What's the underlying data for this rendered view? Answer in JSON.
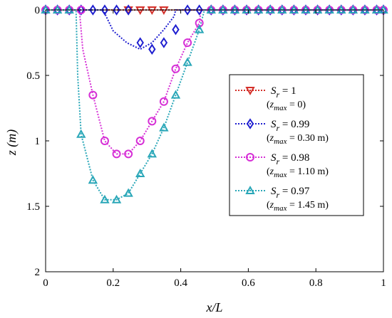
{
  "chart_data": {
    "type": "line",
    "xlabel": "x/L",
    "ylabel": "z (m)",
    "xlim": [
      0,
      1
    ],
    "ylim": [
      0,
      2
    ],
    "y_inverted": true,
    "grid": false,
    "legend_position": "right",
    "x_ticks": [
      "0",
      "0.2",
      "0.4",
      "0.6",
      "0.8",
      "1"
    ],
    "y_ticks": [
      "0",
      "0.5",
      "1",
      "1.5",
      "2"
    ],
    "series": [
      {
        "name": "Sr = 1 (zmax = 0)",
        "label_main": "S",
        "label_sub": "r",
        "label_value": " = 1",
        "note_open": "(",
        "note_var": "z",
        "note_sub": "max",
        "note_value": " = 0)",
        "color": "#d4302a",
        "marker": "triangle-down",
        "x": [
          0.0,
          0.035,
          0.07,
          0.105,
          0.14,
          0.175,
          0.21,
          0.245,
          0.28,
          0.315,
          0.35,
          0.385,
          0.42,
          0.455,
          0.49,
          0.525,
          0.56,
          0.595,
          0.63,
          0.665,
          0.7,
          0.735,
          0.77,
          0.805,
          0.84,
          0.875,
          0.91,
          0.945,
          0.98
        ],
        "y": [
          0,
          0,
          0,
          0,
          0,
          0,
          0,
          0,
          0,
          0,
          0,
          0,
          0,
          0,
          0,
          0,
          0,
          0,
          0,
          0,
          0,
          0,
          0,
          0,
          0,
          0,
          0,
          0,
          0
        ],
        "marker_x": [
          0.245,
          0.28,
          0.315,
          0.35
        ]
      },
      {
        "name": "Sr = 0.99 (zmax = 0.30 m)",
        "label_main": "S",
        "label_sub": "r",
        "label_value": " = 0.99",
        "note_open": "(",
        "note_var": "z",
        "note_sub": "max",
        "note_value": " = 0.30 m)",
        "color": "#1f1fd0",
        "marker": "diamond",
        "x": [
          0.0,
          0.035,
          0.07,
          0.105,
          0.14,
          0.175,
          0.21,
          0.245,
          0.28,
          0.315,
          0.35,
          0.385,
          0.42,
          0.455,
          0.49,
          0.525,
          0.56,
          0.595,
          0.63,
          0.665,
          0.7,
          0.735,
          0.77,
          0.805,
          0.84,
          0.875,
          0.91,
          0.945,
          0.98,
          1.0
        ],
        "y": [
          0,
          0,
          0,
          0,
          0,
          0,
          0,
          0,
          0.25,
          0.3,
          0.25,
          0.15,
          0,
          0,
          0,
          0,
          0,
          0,
          0,
          0,
          0,
          0,
          0,
          0,
          0,
          0,
          0,
          0,
          0,
          0
        ],
        "curve": [
          [
            0.17,
            0
          ],
          [
            0.2,
            0.16
          ],
          [
            0.24,
            0.25
          ],
          [
            0.28,
            0.3
          ],
          [
            0.315,
            0.25
          ],
          [
            0.35,
            0.15
          ],
          [
            0.38,
            0.05
          ],
          [
            0.385,
            0
          ]
        ]
      },
      {
        "name": "Sr = 0.98 (zmax = 1.10 m)",
        "label_main": "S",
        "label_sub": "r",
        "label_value": " = 0.98",
        "note_open": "(",
        "note_var": "z",
        "note_sub": "max",
        "note_value": " = 1.10 m)",
        "color": "#d62fd6",
        "marker": "circle",
        "x": [
          0.0,
          0.035,
          0.07,
          0.105,
          0.14,
          0.175,
          0.21,
          0.245,
          0.28,
          0.315,
          0.35,
          0.385,
          0.42,
          0.455,
          0.49,
          0.525,
          0.56,
          0.595,
          0.63,
          0.665,
          0.7,
          0.735,
          0.77,
          0.805,
          0.84,
          0.875,
          0.91,
          0.945,
          0.98,
          1.0
        ],
        "y": [
          0,
          0,
          0,
          0,
          0.65,
          1.0,
          1.1,
          1.1,
          1.0,
          0.85,
          0.7,
          0.45,
          0.25,
          0.1,
          0,
          0,
          0,
          0,
          0,
          0,
          0,
          0,
          0,
          0,
          0,
          0,
          0,
          0,
          0,
          0
        ],
        "curve": [
          [
            0.1,
            0
          ],
          [
            0.11,
            0.3
          ],
          [
            0.14,
            0.65
          ],
          [
            0.175,
            1.0
          ],
          [
            0.21,
            1.1
          ],
          [
            0.245,
            1.1
          ],
          [
            0.28,
            1.0
          ],
          [
            0.315,
            0.85
          ],
          [
            0.35,
            0.7
          ],
          [
            0.385,
            0.45
          ],
          [
            0.42,
            0.25
          ],
          [
            0.455,
            0.1
          ],
          [
            0.46,
            0
          ]
        ]
      },
      {
        "name": "Sr = 0.97 (zmax = 1.45 m)",
        "label_main": "S",
        "label_sub": "r",
        "label_value": " = 0.97",
        "note_open": "(",
        "note_var": "z",
        "note_sub": "max",
        "note_value": " = 1.45 m)",
        "color": "#2aa7b8",
        "marker": "triangle-up",
        "x": [
          0.0,
          0.035,
          0.07,
          0.105,
          0.14,
          0.175,
          0.21,
          0.245,
          0.28,
          0.315,
          0.35,
          0.385,
          0.42,
          0.455,
          0.49,
          0.525,
          0.56,
          0.595,
          0.63,
          0.665,
          0.7,
          0.735,
          0.77,
          0.805,
          0.84,
          0.875,
          0.91,
          0.945,
          0.98,
          1.0
        ],
        "y": [
          0,
          0,
          0,
          0.95,
          1.3,
          1.45,
          1.45,
          1.4,
          1.25,
          1.1,
          0.9,
          0.65,
          0.4,
          0.15,
          0,
          0,
          0,
          0,
          0,
          0,
          0,
          0,
          0,
          0,
          0,
          0,
          0,
          0,
          0,
          0
        ],
        "curve": [
          [
            0.09,
            0
          ],
          [
            0.095,
            0.5
          ],
          [
            0.105,
            0.95
          ],
          [
            0.14,
            1.3
          ],
          [
            0.175,
            1.45
          ],
          [
            0.21,
            1.45
          ],
          [
            0.245,
            1.4
          ],
          [
            0.28,
            1.25
          ],
          [
            0.315,
            1.1
          ],
          [
            0.35,
            0.9
          ],
          [
            0.385,
            0.65
          ],
          [
            0.42,
            0.4
          ],
          [
            0.455,
            0.15
          ],
          [
            0.47,
            0
          ]
        ]
      }
    ]
  }
}
